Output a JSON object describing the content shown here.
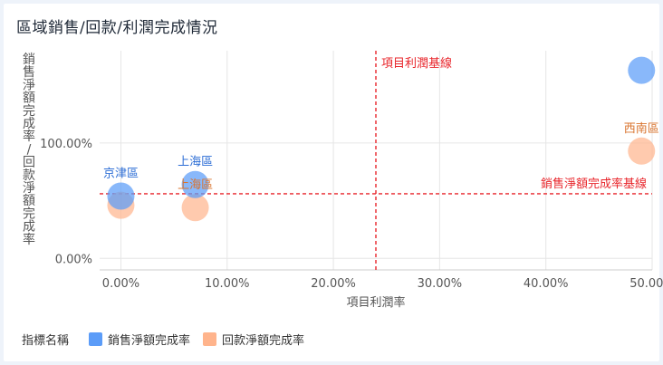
{
  "title": "區域銷售/回款/利潤完成情況",
  "legend": {
    "title": "指標名稱"
  },
  "colors": {
    "sales": "#5b9cf8",
    "collection": "#ffb48c",
    "reference": "#e8242a",
    "sales_label": "#2f6fd6",
    "collection_label": "#d9742f"
  },
  "chart_data": {
    "type": "scatter",
    "title": "區域銷售/回款/利潤完成情況",
    "xlabel": "項目利潤率",
    "ylabel": "銷售淨額完成率/回款淨額完成率",
    "x_ticks": [
      "0.00%",
      "10.00%",
      "20.00%",
      "30.00%",
      "40.00%",
      "50.00%"
    ],
    "y_ticks": [
      "0.00%",
      "100.00%"
    ],
    "xlim": [
      -0.02,
      0.5
    ],
    "ylim": [
      -0.1,
      1.8
    ],
    "grid": true,
    "legend_position": "bottom-left",
    "series": [
      {
        "name": "銷售淨額完成率",
        "color_key": "sales",
        "points": [
          {
            "x": 0.0,
            "y": 0.54,
            "label": "京津區"
          },
          {
            "x": 0.07,
            "y": 0.64,
            "label": "上海區"
          },
          {
            "x": 0.49,
            "y": 1.63,
            "label": ""
          }
        ]
      },
      {
        "name": "回款淨額完成率",
        "color_key": "collection",
        "points": [
          {
            "x": 0.0,
            "y": 0.46,
            "label": ""
          },
          {
            "x": 0.07,
            "y": 0.44,
            "label": "上海區"
          },
          {
            "x": 0.49,
            "y": 0.93,
            "label": "西南區"
          }
        ]
      }
    ],
    "reference_lines": [
      {
        "axis": "x",
        "value": 0.24,
        "label": "項目利潤基線"
      },
      {
        "axis": "y",
        "value": 0.56,
        "label": "銷售淨額完成率基線"
      }
    ]
  }
}
